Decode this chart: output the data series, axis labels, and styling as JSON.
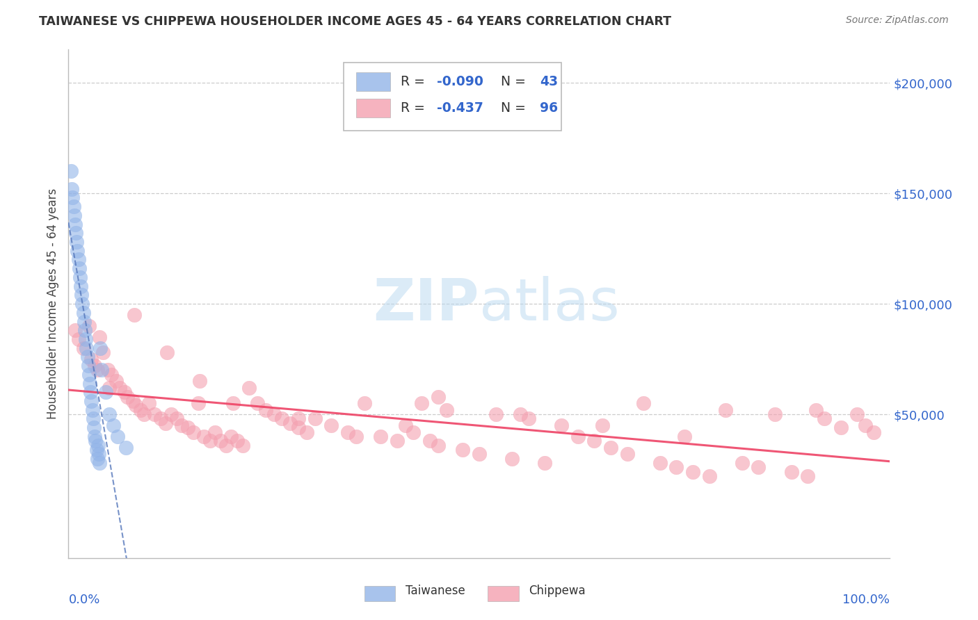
{
  "title": "TAIWANESE VS CHIPPEWA HOUSEHOLDER INCOME AGES 45 - 64 YEARS CORRELATION CHART",
  "source": "Source: ZipAtlas.com",
  "ylabel": "Householder Income Ages 45 - 64 years",
  "r_taiwanese": -0.09,
  "n_taiwanese": 43,
  "r_chippewa": -0.437,
  "n_chippewa": 96,
  "taiwanese_color": "#92b4e8",
  "chippewa_color": "#f4a0b0",
  "taiwanese_line_color": "#5577bb",
  "chippewa_line_color": "#ee4466",
  "label_color": "#3366cc",
  "watermark_color": "#b8d8f0",
  "tw_x": [
    0.3,
    0.4,
    0.5,
    0.6,
    0.7,
    0.8,
    0.9,
    1.0,
    1.1,
    1.2,
    1.3,
    1.4,
    1.5,
    1.6,
    1.7,
    1.8,
    1.9,
    2.0,
    2.1,
    2.2,
    2.3,
    2.4,
    2.5,
    2.6,
    2.7,
    2.8,
    2.9,
    3.0,
    3.1,
    3.2,
    3.3,
    3.4,
    3.5,
    3.6,
    3.7,
    3.8,
    3.9,
    4.0,
    4.5,
    5.0,
    5.5,
    6.0,
    7.0
  ],
  "tw_y": [
    160000,
    152000,
    148000,
    144000,
    140000,
    136000,
    132000,
    128000,
    124000,
    120000,
    116000,
    112000,
    108000,
    104000,
    100000,
    96000,
    92000,
    88000,
    84000,
    80000,
    76000,
    72000,
    68000,
    64000,
    60000,
    56000,
    52000,
    48000,
    44000,
    40000,
    38000,
    34000,
    30000,
    36000,
    32000,
    28000,
    80000,
    70000,
    60000,
    50000,
    45000,
    40000,
    35000
  ],
  "ch_x": [
    0.8,
    1.2,
    1.8,
    2.5,
    2.8,
    3.2,
    3.8,
    4.2,
    4.8,
    5.2,
    5.8,
    6.2,
    6.8,
    7.2,
    7.8,
    8.2,
    8.8,
    9.2,
    9.8,
    10.5,
    11.2,
    11.8,
    12.5,
    13.2,
    13.8,
    14.5,
    15.2,
    15.8,
    16.5,
    17.2,
    17.8,
    18.5,
    19.2,
    19.8,
    20.5,
    21.2,
    22.0,
    23.0,
    24.0,
    25.0,
    26.0,
    27.0,
    28.0,
    29.0,
    30.0,
    32.0,
    34.0,
    36.0,
    38.0,
    40.0,
    41.0,
    42.0,
    43.0,
    44.0,
    45.0,
    46.0,
    48.0,
    50.0,
    52.0,
    54.0,
    56.0,
    58.0,
    60.0,
    62.0,
    64.0,
    66.0,
    68.0,
    70.0,
    72.0,
    74.0,
    76.0,
    78.0,
    80.0,
    82.0,
    84.0,
    86.0,
    88.0,
    90.0,
    91.0,
    92.0,
    94.0,
    96.0,
    97.0,
    98.0,
    3.5,
    5.0,
    8.0,
    12.0,
    16.0,
    20.0,
    28.0,
    35.0,
    45.0,
    55.0,
    65.0,
    75.0
  ],
  "ch_y": [
    88000,
    84000,
    80000,
    90000,
    75000,
    72000,
    85000,
    78000,
    70000,
    68000,
    65000,
    62000,
    60000,
    58000,
    56000,
    54000,
    52000,
    50000,
    55000,
    50000,
    48000,
    46000,
    50000,
    48000,
    45000,
    44000,
    42000,
    55000,
    40000,
    38000,
    42000,
    38000,
    36000,
    40000,
    38000,
    36000,
    62000,
    55000,
    52000,
    50000,
    48000,
    46000,
    44000,
    42000,
    48000,
    45000,
    42000,
    55000,
    40000,
    38000,
    45000,
    42000,
    55000,
    38000,
    36000,
    52000,
    34000,
    32000,
    50000,
    30000,
    48000,
    28000,
    45000,
    40000,
    38000,
    35000,
    32000,
    55000,
    28000,
    26000,
    24000,
    22000,
    52000,
    28000,
    26000,
    50000,
    24000,
    22000,
    52000,
    48000,
    44000,
    50000,
    45000,
    42000,
    70000,
    62000,
    95000,
    78000,
    65000,
    55000,
    48000,
    40000,
    58000,
    50000,
    45000,
    40000
  ]
}
